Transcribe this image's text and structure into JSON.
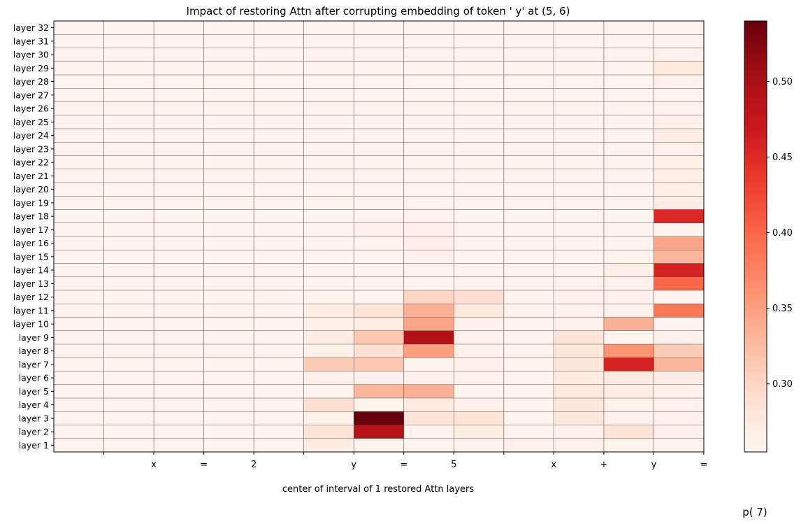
{
  "chart_data": {
    "type": "heatmap",
    "title": "Impact of restoring Attn after corrupting embedding of token ' y' at (5, 6)",
    "xlabel": "center of interval of 1 restored Attn layers",
    "colorbar_label": "p( 7)",
    "x_tick_labels": [
      "",
      "x",
      "=",
      "2",
      "",
      "y",
      "=",
      "5",
      "",
      "x",
      "+",
      "y",
      "="
    ],
    "y_tick_labels": [
      "layer 32",
      "layer 31",
      "layer 30",
      "layer 29",
      "layer 28",
      "layer 27",
      "layer 26",
      "layer 25",
      "layer 24",
      "layer 23",
      "layer 22",
      "layer 21",
      "layer 20",
      "layer 19",
      "layer 18",
      "layer 17",
      "layer 16",
      "layer 15",
      "layer 14",
      "layer 13",
      "layer 12",
      "layer 11",
      "layer 10",
      "layer 9",
      "layer 8",
      "layer 7",
      "layer 6",
      "layer 5",
      "layer 4",
      "layer 3",
      "layer 2",
      "layer 1"
    ],
    "colorbar_ticks": [
      0.3,
      0.35,
      0.4,
      0.45,
      0.5
    ],
    "colorbar_tick_labels": [
      "0.30",
      "0.35",
      "0.40",
      "0.45",
      "0.50"
    ],
    "value_range": [
      0.255,
      0.54
    ],
    "colormap": "Reds",
    "values": [
      [
        0.258,
        0.258,
        0.258,
        0.258,
        0.258,
        0.258,
        0.258,
        0.258,
        0.258,
        0.258,
        0.258,
        0.258,
        0.258
      ],
      [
        0.258,
        0.258,
        0.258,
        0.258,
        0.258,
        0.258,
        0.258,
        0.258,
        0.258,
        0.258,
        0.258,
        0.258,
        0.258
      ],
      [
        0.258,
        0.258,
        0.258,
        0.258,
        0.258,
        0.258,
        0.258,
        0.258,
        0.258,
        0.258,
        0.258,
        0.258,
        0.262
      ],
      [
        0.258,
        0.258,
        0.258,
        0.258,
        0.258,
        0.258,
        0.258,
        0.258,
        0.258,
        0.258,
        0.258,
        0.258,
        0.275
      ],
      [
        0.258,
        0.258,
        0.258,
        0.258,
        0.258,
        0.258,
        0.258,
        0.258,
        0.258,
        0.258,
        0.258,
        0.258,
        0.262
      ],
      [
        0.258,
        0.258,
        0.258,
        0.258,
        0.258,
        0.258,
        0.258,
        0.258,
        0.258,
        0.258,
        0.258,
        0.258,
        0.26
      ],
      [
        0.258,
        0.258,
        0.258,
        0.258,
        0.258,
        0.258,
        0.258,
        0.258,
        0.258,
        0.258,
        0.258,
        0.258,
        0.26
      ],
      [
        0.258,
        0.258,
        0.258,
        0.258,
        0.258,
        0.258,
        0.258,
        0.258,
        0.258,
        0.258,
        0.258,
        0.258,
        0.262
      ],
      [
        0.258,
        0.258,
        0.258,
        0.258,
        0.258,
        0.258,
        0.258,
        0.258,
        0.258,
        0.258,
        0.258,
        0.258,
        0.268
      ],
      [
        0.258,
        0.258,
        0.258,
        0.258,
        0.258,
        0.258,
        0.258,
        0.258,
        0.258,
        0.258,
        0.258,
        0.258,
        0.262
      ],
      [
        0.258,
        0.258,
        0.258,
        0.258,
        0.258,
        0.258,
        0.258,
        0.258,
        0.258,
        0.258,
        0.258,
        0.258,
        0.264
      ],
      [
        0.258,
        0.258,
        0.258,
        0.258,
        0.258,
        0.258,
        0.258,
        0.258,
        0.258,
        0.258,
        0.258,
        0.258,
        0.266
      ],
      [
        0.258,
        0.258,
        0.258,
        0.258,
        0.258,
        0.258,
        0.258,
        0.258,
        0.258,
        0.258,
        0.258,
        0.258,
        0.266
      ],
      [
        0.258,
        0.258,
        0.258,
        0.258,
        0.258,
        0.258,
        0.258,
        0.26,
        0.258,
        0.258,
        0.258,
        0.258,
        0.268
      ],
      [
        0.258,
        0.258,
        0.258,
        0.258,
        0.258,
        0.258,
        0.258,
        0.26,
        0.258,
        0.258,
        0.258,
        0.258,
        0.452
      ],
      [
        0.258,
        0.258,
        0.258,
        0.258,
        0.258,
        0.258,
        0.262,
        0.265,
        0.258,
        0.258,
        0.258,
        0.258,
        0.256
      ],
      [
        0.258,
        0.258,
        0.258,
        0.258,
        0.258,
        0.258,
        0.26,
        0.265,
        0.258,
        0.258,
        0.258,
        0.258,
        0.345
      ],
      [
        0.258,
        0.258,
        0.258,
        0.258,
        0.258,
        0.258,
        0.258,
        0.262,
        0.258,
        0.258,
        0.258,
        0.258,
        0.33
      ],
      [
        0.258,
        0.258,
        0.258,
        0.258,
        0.258,
        0.258,
        0.258,
        0.26,
        0.258,
        0.258,
        0.258,
        0.266,
        0.46
      ],
      [
        0.258,
        0.258,
        0.258,
        0.258,
        0.258,
        0.258,
        0.258,
        0.258,
        0.258,
        0.258,
        0.262,
        0.262,
        0.4
      ],
      [
        0.258,
        0.258,
        0.258,
        0.258,
        0.258,
        0.258,
        0.26,
        0.3,
        0.29,
        0.258,
        0.262,
        0.262,
        0.256
      ],
      [
        0.258,
        0.258,
        0.258,
        0.258,
        0.258,
        0.27,
        0.285,
        0.335,
        0.275,
        0.258,
        0.262,
        0.262,
        0.385
      ],
      [
        0.258,
        0.258,
        0.258,
        0.258,
        0.258,
        0.264,
        0.268,
        0.345,
        0.262,
        0.258,
        0.262,
        0.335,
        0.256
      ],
      [
        0.258,
        0.258,
        0.258,
        0.258,
        0.258,
        0.268,
        0.315,
        0.492,
        0.262,
        0.258,
        0.285,
        0.255,
        0.262
      ],
      [
        0.258,
        0.258,
        0.258,
        0.258,
        0.258,
        0.262,
        0.29,
        0.35,
        0.262,
        0.258,
        0.28,
        0.36,
        0.31
      ],
      [
        0.258,
        0.258,
        0.258,
        0.258,
        0.258,
        0.31,
        0.315,
        0.256,
        0.262,
        0.258,
        0.28,
        0.46,
        0.33
      ],
      [
        0.258,
        0.258,
        0.258,
        0.258,
        0.258,
        0.262,
        0.262,
        0.262,
        0.262,
        0.258,
        0.272,
        0.272,
        0.268
      ],
      [
        0.258,
        0.258,
        0.258,
        0.258,
        0.258,
        0.258,
        0.33,
        0.335,
        0.258,
        0.258,
        0.275,
        0.268,
        0.262
      ],
      [
        0.258,
        0.258,
        0.258,
        0.258,
        0.258,
        0.29,
        0.258,
        0.272,
        0.262,
        0.258,
        0.278,
        0.262,
        0.262
      ],
      [
        0.258,
        0.258,
        0.258,
        0.258,
        0.258,
        0.264,
        0.54,
        0.285,
        0.285,
        0.258,
        0.278,
        0.262,
        0.262
      ],
      [
        0.258,
        0.258,
        0.258,
        0.258,
        0.258,
        0.285,
        0.49,
        0.258,
        0.27,
        0.258,
        0.262,
        0.285,
        0.262
      ],
      [
        0.258,
        0.258,
        0.258,
        0.258,
        0.258,
        0.27,
        0.258,
        0.258,
        0.258,
        0.262,
        0.262,
        0.258,
        0.258
      ]
    ]
  }
}
